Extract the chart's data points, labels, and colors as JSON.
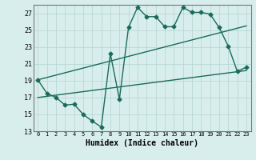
{
  "xlabel": "Humidex (Indice chaleur)",
  "bg_color": "#d8eeec",
  "grid_color": "#b8d8d4",
  "line_color": "#1a6b5a",
  "xlim": [
    -0.5,
    23.5
  ],
  "ylim": [
    13,
    28
  ],
  "yticks": [
    13,
    15,
    17,
    19,
    21,
    23,
    25,
    27
  ],
  "xticks": [
    0,
    1,
    2,
    3,
    4,
    5,
    6,
    7,
    8,
    9,
    10,
    11,
    12,
    13,
    14,
    15,
    16,
    17,
    18,
    19,
    20,
    21,
    22,
    23
  ],
  "line1_x": [
    0,
    1,
    2,
    3,
    4,
    5,
    6,
    7,
    8,
    9,
    10,
    11,
    12,
    13,
    14,
    15,
    16,
    17,
    18,
    19,
    20,
    21,
    22,
    23
  ],
  "line1_y": [
    19.1,
    17.5,
    17.0,
    16.1,
    16.2,
    15.0,
    14.2,
    13.5,
    22.2,
    16.8,
    25.3,
    27.7,
    26.6,
    26.6,
    25.4,
    25.4,
    27.7,
    27.1,
    27.1,
    26.9,
    25.3,
    23.1,
    20.1,
    20.6
  ],
  "line2_x": [
    0,
    23
  ],
  "line2_y": [
    19.1,
    25.5
  ],
  "line3_x": [
    0,
    23
  ],
  "line3_y": [
    17.0,
    20.2
  ],
  "marker_size": 2.5,
  "line_width": 1.0
}
